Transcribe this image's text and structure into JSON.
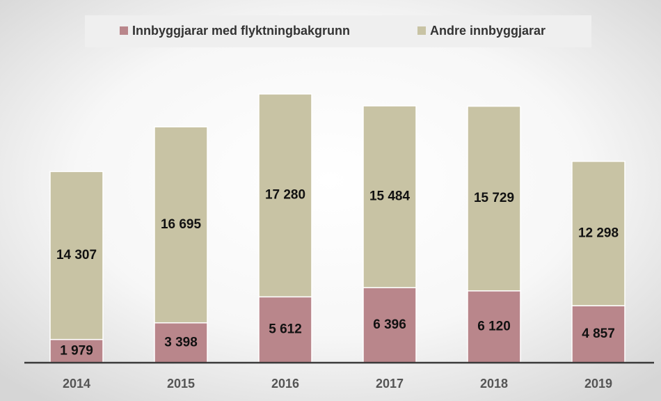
{
  "chart_data": {
    "type": "stacked_bar",
    "categories": [
      "2014",
      "2015",
      "2016",
      "2017",
      "2018",
      "2019"
    ],
    "series": [
      {
        "name": "Innbyggjarar med flyktningbakgrunn",
        "color": "#b9868b",
        "values": [
          1979,
          3398,
          5612,
          6396,
          6120,
          4857
        ],
        "value_labels": [
          "1 979",
          "3 398",
          "5 612",
          "6 396",
          "6 120",
          "4 857"
        ]
      },
      {
        "name": "Andre innbyggjarar",
        "color": "#c8c3a4",
        "values": [
          14307,
          16695,
          17280,
          15484,
          15729,
          12298
        ],
        "value_labels": [
          "14 307",
          "16 695",
          "17 280",
          "15 484",
          "15 729",
          "12 298"
        ]
      }
    ],
    "legend": "top"
  }
}
